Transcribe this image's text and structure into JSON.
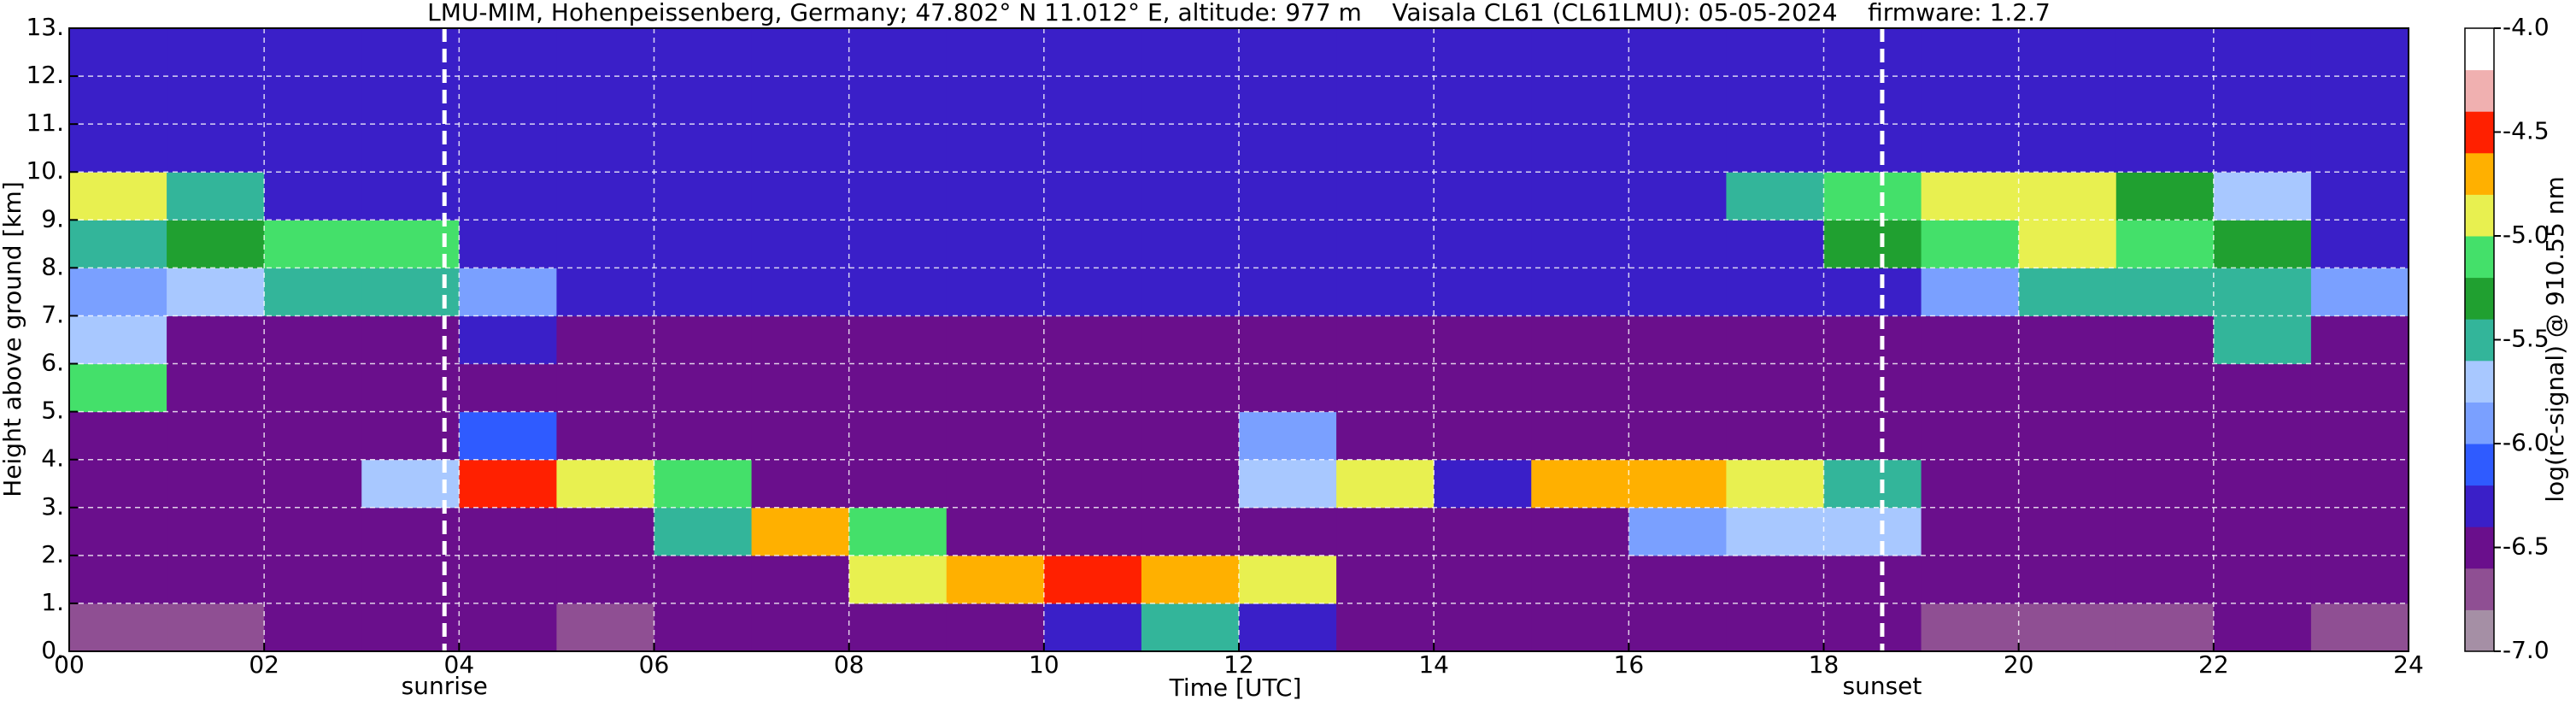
{
  "chart_data": {
    "type": "heatmap",
    "title": "LMU-MIM, Hohenpeissenberg, Germany; 47.802° N 11.012° E, altitude: 977 m    Vaisala CL61 (CL61LMU): 05-05-2024    firmware: 1.2.7",
    "x_label": "Time [UTC]",
    "y_label": "Height above ground [km]",
    "colorbar_label": "log(rc-signal) @ 910.55 nm",
    "xlim": [
      0,
      24
    ],
    "ylim": [
      0,
      13
    ],
    "xticks": [
      {
        "value": 0,
        "label": "00"
      },
      {
        "value": 2,
        "label": "02"
      },
      {
        "value": 4,
        "label": "04"
      },
      {
        "value": 6,
        "label": "06"
      },
      {
        "value": 8,
        "label": "08"
      },
      {
        "value": 10,
        "label": "10"
      },
      {
        "value": 12,
        "label": "12"
      },
      {
        "value": 14,
        "label": "14"
      },
      {
        "value": 16,
        "label": "16"
      },
      {
        "value": 18,
        "label": "18"
      },
      {
        "value": 20,
        "label": "20"
      },
      {
        "value": 22,
        "label": "22"
      },
      {
        "value": 24,
        "label": "24"
      }
    ],
    "yticks": [
      {
        "value": 0,
        "label": "0."
      },
      {
        "value": 1,
        "label": "1."
      },
      {
        "value": 2,
        "label": "2."
      },
      {
        "value": 3,
        "label": "3."
      },
      {
        "value": 4,
        "label": "4."
      },
      {
        "value": 5,
        "label": "5."
      },
      {
        "value": 6,
        "label": "6."
      },
      {
        "value": 7,
        "label": "7."
      },
      {
        "value": 8,
        "label": "8."
      },
      {
        "value": 9,
        "label": "9."
      },
      {
        "value": 10,
        "label": "10."
      },
      {
        "value": 11,
        "label": "11."
      },
      {
        "value": 12,
        "label": "12."
      },
      {
        "value": 13,
        "label": "13."
      }
    ],
    "grid": true,
    "events": [
      {
        "name": "sunrise",
        "x": 3.85
      },
      {
        "name": "sunset",
        "x": 18.6
      }
    ],
    "clim": [
      -7,
      -4
    ],
    "cticks": [
      {
        "value": -4,
        "label": "-4.0"
      },
      -4.5,
      {
        "value": -5,
        "label": "-5.0"
      },
      -5.5,
      {
        "value": -6,
        "label": "-6.0"
      },
      -6.5,
      {
        "value": -7,
        "label": "-7.0"
      }
    ],
    "colors": [
      "#a58fa5",
      "#8f4f93",
      "#6a0f8c",
      "#3a1fc8",
      "#2f5bff",
      "#7aa0ff",
      "#a8c8ff",
      "#33b59a",
      "#20a030",
      "#44e06a",
      "#e8f050",
      "#ffb000",
      "#ff2000",
      "#f0b0b0",
      "#ffffff"
    ],
    "z": [
      [
        -6.7,
        -6.7,
        -6.6,
        -6.5,
        -6.6,
        -6.7,
        -6.6,
        -6.5,
        -6.6,
        -6.6,
        -6.2,
        -5.6,
        -6.3,
        -6.5,
        -6.6,
        -6.5,
        -6.6,
        -6.6,
        -6.6,
        -6.7,
        -6.7,
        -6.7,
        -6.6,
        -6.7
      ],
      [
        -6.6,
        -6.6,
        -6.6,
        -6.6,
        -6.6,
        -6.6,
        -6.6,
        -6.6,
        -4.9,
        -4.7,
        -4.6,
        -4.8,
        -4.9,
        -6.5,
        -6.6,
        -6.6,
        -6.6,
        -6.6,
        -6.6,
        -6.6,
        -6.6,
        -6.6,
        -6.6,
        -6.6
      ],
      [
        -6.5,
        -6.5,
        -6.5,
        -6.5,
        -6.5,
        -6.5,
        -5.6,
        -4.8,
        -5.2,
        -6.5,
        -6.5,
        -6.5,
        -6.4,
        -6.5,
        -6.5,
        -6.5,
        -5.9,
        -5.8,
        -5.7,
        -6.5,
        -6.5,
        -6.5,
        -6.5,
        -6.5
      ],
      [
        -6.5,
        -6.5,
        -6.5,
        -5.8,
        -4.5,
        -4.9,
        -5.1,
        -6.4,
        -6.5,
        -6.5,
        -6.5,
        -6.5,
        -5.7,
        -4.9,
        -6.3,
        -4.8,
        -4.7,
        -5.0,
        -5.6,
        -6.4,
        -6.5,
        -6.5,
        -6.5,
        -6.5
      ],
      [
        -6.5,
        -6.4,
        -6.5,
        -6.5,
        -6.1,
        -6.5,
        -6.5,
        -6.5,
        -6.5,
        -6.5,
        -6.5,
        -6.5,
        -5.9,
        -6.5,
        -6.5,
        -6.5,
        -6.5,
        -6.5,
        -6.5,
        -6.5,
        -6.5,
        -6.5,
        -6.5,
        -6.5
      ],
      [
        -5.2,
        -6.4,
        -6.5,
        -6.5,
        -6.5,
        -6.5,
        -6.5,
        -6.5,
        -6.5,
        -6.5,
        -6.5,
        -6.5,
        -6.5,
        -6.5,
        -6.5,
        -6.5,
        -6.5,
        -6.5,
        -6.5,
        -6.5,
        -6.5,
        -6.5,
        -6.5,
        -6.5
      ],
      [
        -5.8,
        -6.4,
        -6.4,
        -6.4,
        -6.3,
        -6.4,
        -6.4,
        -6.4,
        -6.4,
        -6.4,
        -6.4,
        -6.4,
        -6.4,
        -6.4,
        -6.4,
        -6.4,
        -6.4,
        -6.4,
        -6.4,
        -6.4,
        -6.4,
        -6.4,
        -5.6,
        -6.4
      ],
      [
        -5.9,
        -5.7,
        -5.4,
        -5.5,
        -5.9,
        -6.3,
        -6.3,
        -6.3,
        -6.3,
        -6.3,
        -6.3,
        -6.3,
        -6.3,
        -6.3,
        -6.3,
        -6.3,
        -6.3,
        -6.3,
        -6.3,
        -6.0,
        -5.6,
        -5.5,
        -5.4,
        -5.9
      ],
      [
        -5.4,
        -5.3,
        -5.1,
        -5.2,
        -6.3,
        -6.3,
        -6.3,
        -6.3,
        -6.3,
        -6.3,
        -6.3,
        -6.3,
        -6.3,
        -6.3,
        -6.3,
        -6.3,
        -6.3,
        -6.3,
        -5.3,
        -5.1,
        -5.0,
        -5.2,
        -5.3,
        -6.2
      ],
      [
        -5.0,
        -5.5,
        -6.2,
        -6.3,
        -6.3,
        -6.3,
        -6.3,
        -6.3,
        -6.3,
        -6.3,
        -6.3,
        -6.3,
        -6.3,
        -6.3,
        -6.3,
        -6.3,
        -6.3,
        -5.6,
        -5.2,
        -4.9,
        -5.0,
        -5.3,
        -5.8,
        -6.2
      ],
      [
        -6.3,
        -6.3,
        -6.3,
        -6.3,
        -6.3,
        -6.3,
        -6.3,
        -6.3,
        -6.3,
        -6.3,
        -6.3,
        -6.3,
        -6.3,
        -6.3,
        -6.3,
        -6.3,
        -6.3,
        -6.3,
        -6.3,
        -6.3,
        -6.3,
        -6.3,
        -6.3,
        -6.3
      ],
      [
        -6.3,
        -6.3,
        -6.3,
        -6.3,
        -6.3,
        -6.3,
        -6.3,
        -6.3,
        -6.3,
        -6.3,
        -6.3,
        -6.3,
        -6.3,
        -6.3,
        -6.3,
        -6.3,
        -6.3,
        -6.3,
        -6.3,
        -6.3,
        -6.3,
        -6.3,
        -6.3,
        -6.3
      ],
      [
        -6.2,
        -6.2,
        -6.2,
        -6.2,
        -6.2,
        -6.2,
        -6.2,
        -6.2,
        -6.2,
        -6.2,
        -6.2,
        -6.2,
        -6.2,
        -6.2,
        -6.2,
        -6.2,
        -6.2,
        -6.2,
        -6.2,
        -6.2,
        -6.2,
        -6.2,
        -6.2,
        -6.2
      ]
    ]
  }
}
